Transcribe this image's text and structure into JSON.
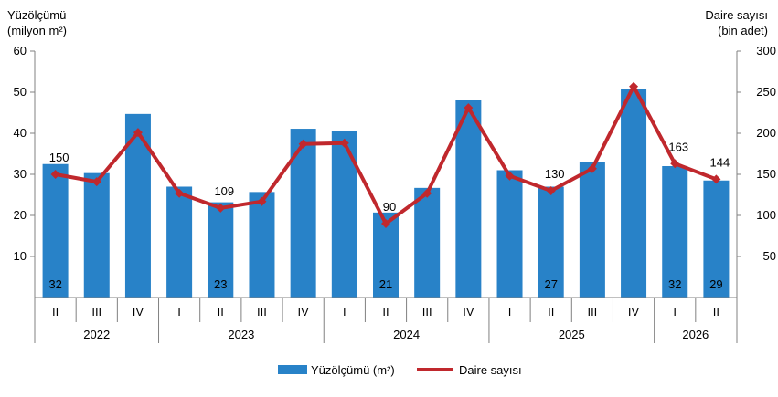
{
  "chart_data": {
    "type": "bar",
    "categories": [
      "II",
      "III",
      "IV",
      "I",
      "II",
      "III",
      "IV",
      "I",
      "II",
      "III",
      "IV",
      "I",
      "II",
      "III",
      "IV",
      "I",
      "II"
    ],
    "years": [
      {
        "label": "2022",
        "count": 3
      },
      {
        "label": "2023",
        "count": 4
      },
      {
        "label": "2024",
        "count": 4
      },
      {
        "label": "2025",
        "count": 4
      },
      {
        "label": "2026",
        "count": 2
      }
    ],
    "series": [
      {
        "name": "Yüzölçümü (m²)",
        "kind": "bar",
        "axis": "left",
        "color": "#2882C8",
        "values": [
          32.5,
          30.3,
          44.7,
          27.0,
          23.2,
          25.7,
          41.1,
          40.6,
          20.7,
          26.7,
          48.0,
          31.0,
          27.0,
          33.0,
          50.7,
          32.0,
          28.5
        ],
        "labels": {
          "0": "32",
          "4": "23",
          "8": "21",
          "12": "27",
          "15": "32",
          "16": "29"
        }
      },
      {
        "name": "Daire sayısı",
        "kind": "line",
        "axis": "right",
        "color": "#C0282D",
        "values": [
          150,
          141,
          201,
          127,
          109,
          117,
          187,
          188,
          90,
          127,
          231,
          148,
          130,
          157,
          257,
          163,
          144
        ],
        "labels": {
          "0": "150",
          "4": "109",
          "8": "90",
          "12": "130",
          "15": "163",
          "16": "144"
        }
      }
    ],
    "y_left": {
      "title_line1": "Yüzölçümü",
      "title_line2": "(milyon m²)",
      "ylim": [
        0,
        60
      ],
      "ticks": [
        10,
        20,
        30,
        40,
        50,
        60
      ]
    },
    "y_right": {
      "title_line1": "Daire sayısı",
      "title_line2": "(bin adet)",
      "ylim": [
        0,
        300
      ],
      "ticks": [
        50,
        100,
        150,
        200,
        250,
        300
      ]
    },
    "grid": false,
    "legend": {
      "position": "bottom-center"
    }
  }
}
